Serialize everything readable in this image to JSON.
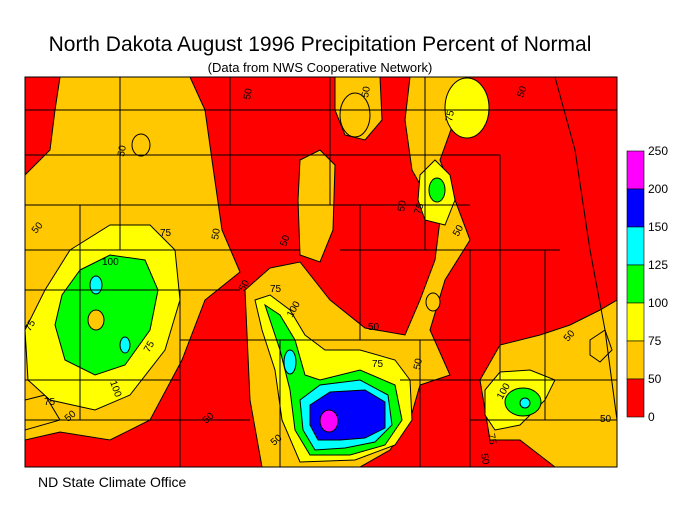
{
  "title": "North Dakota August 1996 Precipitation Percent of Normal",
  "subtitle": "(Data from NWS Cooperative Network)",
  "credit": "ND State Climate Office",
  "legend": {
    "ticks": [
      "250",
      "200",
      "150",
      "125",
      "100",
      "75",
      "50",
      "0"
    ],
    "bands": [
      {
        "range": "200-250",
        "color": "#ff00ff"
      },
      {
        "range": "150-200",
        "color": "#0000ff"
      },
      {
        "range": "125-150",
        "color": "#00ffff"
      },
      {
        "range": "100-125",
        "color": "#00ff00"
      },
      {
        "range": "75-100",
        "color": "#ffff00"
      },
      {
        "range": "50-75",
        "color": "#ffc800"
      },
      {
        "range": "0-50",
        "color": "#ff0000"
      }
    ]
  },
  "contour_labels": [
    "50",
    "50",
    "50",
    "75",
    "50",
    "50",
    "75",
    "50",
    "50",
    "50",
    "75",
    "50",
    "100",
    "75",
    "50",
    "100",
    "50",
    "75",
    "75",
    "100",
    "75",
    "75",
    "50",
    "50",
    "100",
    "75",
    "50",
    "50",
    "50",
    "50",
    "50"
  ]
}
